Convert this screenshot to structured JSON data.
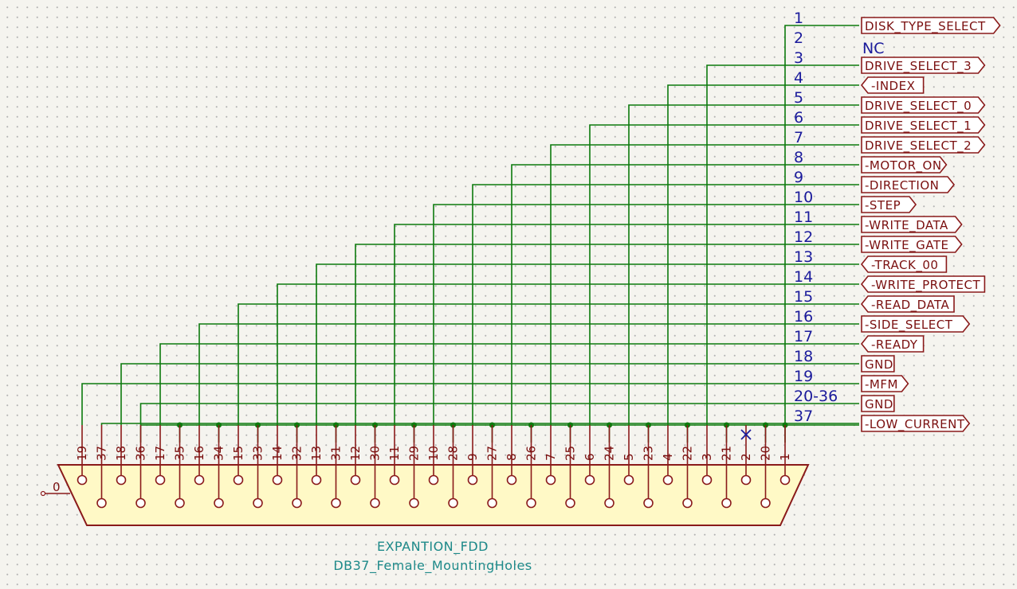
{
  "component": {
    "reference": "EXPANTION_FDD",
    "value": "DB37_Female_MountingHoles",
    "shell_pin": "0"
  },
  "nets": [
    {
      "num": "1",
      "label": "DISK_TYPE_SELECT",
      "shape": "output",
      "pin": "1"
    },
    {
      "num": "2",
      "label": "NC",
      "shape": "none",
      "pin": "2"
    },
    {
      "num": "3",
      "label": "DRIVE_SELECT_3",
      "shape": "output",
      "pin": "3"
    },
    {
      "num": "4",
      "label": "-INDEX",
      "shape": "input",
      "pin": "4"
    },
    {
      "num": "5",
      "label": "DRIVE_SELECT_0",
      "shape": "output",
      "pin": "5"
    },
    {
      "num": "6",
      "label": "DRIVE_SELECT_1",
      "shape": "output",
      "pin": "6"
    },
    {
      "num": "7",
      "label": "DRIVE_SELECT_2",
      "shape": "output",
      "pin": "7"
    },
    {
      "num": "8",
      "label": "-MOTOR_ON",
      "shape": "output",
      "pin": "8"
    },
    {
      "num": "9",
      "label": "-DIRECTION",
      "shape": "output",
      "pin": "9"
    },
    {
      "num": "10",
      "label": "-STEP",
      "shape": "output",
      "pin": "10"
    },
    {
      "num": "11",
      "label": "-WRITE_DATA",
      "shape": "output",
      "pin": "11"
    },
    {
      "num": "12",
      "label": "-WRITE_GATE",
      "shape": "output",
      "pin": "12"
    },
    {
      "num": "13",
      "label": "-TRACK_00",
      "shape": "input",
      "pin": "13"
    },
    {
      "num": "14",
      "label": "-WRITE_PROTECT",
      "shape": "input",
      "pin": "14"
    },
    {
      "num": "15",
      "label": "-READ_DATA",
      "shape": "input",
      "pin": "15"
    },
    {
      "num": "16",
      "label": "-SIDE_SELECT",
      "shape": "output",
      "pin": "16"
    },
    {
      "num": "17",
      "label": "-READY",
      "shape": "input",
      "pin": "17"
    },
    {
      "num": "18",
      "label": "GND",
      "shape": "passive",
      "pin": "18"
    },
    {
      "num": "19",
      "label": "-MFM",
      "shape": "output",
      "pin": "19"
    },
    {
      "num": "20-36",
      "label": "GND",
      "shape": "passive",
      "pin": "20-36"
    },
    {
      "num": "37",
      "label": "-LOW_CURRENT",
      "shape": "output",
      "pin": "37"
    }
  ],
  "pins": [
    "19",
    "37",
    "18",
    "36",
    "17",
    "35",
    "16",
    "34",
    "15",
    "33",
    "14",
    "32",
    "13",
    "31",
    "12",
    "30",
    "11",
    "29",
    "10",
    "28",
    "9",
    "27",
    "8",
    "26",
    "7",
    "25",
    "6",
    "24",
    "5",
    "23",
    "4",
    "22",
    "3",
    "21",
    "2",
    "20",
    "1"
  ],
  "no_connect_pins": [
    "2"
  ]
}
